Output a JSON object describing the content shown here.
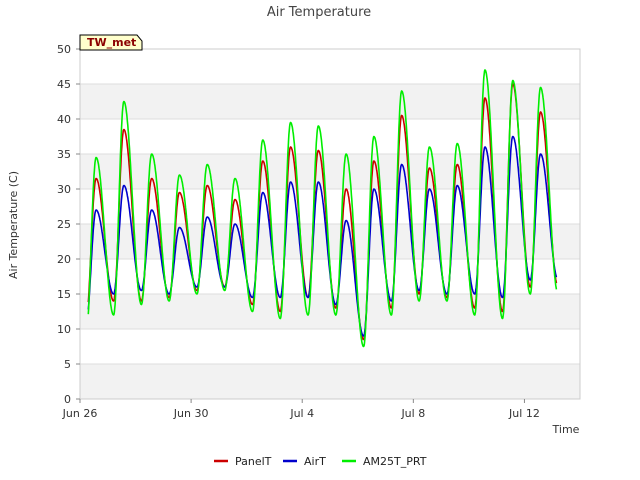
{
  "chart_data": {
    "type": "line",
    "title": "Air Temperature",
    "xlabel": "Time",
    "ylabel": "Air Temperature (C)",
    "station_badge": "TW_met",
    "x_tick_labels": [
      "Jun 26",
      "Jun 30",
      "Jul 4",
      "Jul 8",
      "Jul 12"
    ],
    "x_tick_days": [
      0,
      4,
      8,
      12,
      16
    ],
    "x_range_days": [
      0,
      18
    ],
    "ylim": [
      0,
      50
    ],
    "y_ticks": [
      0,
      5,
      10,
      15,
      20,
      25,
      30,
      35,
      40,
      45,
      50
    ],
    "grid": "horizontal bands",
    "legend_position": "bottom",
    "series": [
      {
        "name": "PanelT",
        "color": "#cc0000",
        "daily_min": [
          11,
          14,
          14,
          14.5,
          15.5,
          16,
          13.5,
          12.5,
          14.5,
          13,
          8.5,
          13,
          15,
          14.5,
          13,
          12.5,
          16,
          16
        ],
        "daily_max": [
          31.5,
          38.5,
          31.5,
          29.5,
          30.5,
          28.5,
          34,
          36,
          35.5,
          30,
          34,
          40.5,
          33,
          33.5,
          43,
          45,
          41
        ]
      },
      {
        "name": "AirT",
        "color": "#0000cc",
        "daily_min": [
          10.5,
          15,
          15.5,
          15,
          16,
          16,
          14.5,
          14.5,
          14.5,
          13.5,
          9,
          14,
          15.5,
          15,
          15,
          14.5,
          17,
          17
        ],
        "daily_max": [
          27,
          30.5,
          27,
          24.5,
          26,
          25,
          29.5,
          31,
          31,
          25.5,
          30,
          33.5,
          30,
          30.5,
          36,
          37.5,
          35
        ]
      },
      {
        "name": "AM25T_PRT",
        "color": "#00ee00",
        "daily_min": [
          8.5,
          12,
          13.5,
          14,
          15,
          15.5,
          12.5,
          11.5,
          12,
          12,
          7.5,
          12,
          14,
          14,
          12,
          11.5,
          15,
          15
        ],
        "daily_max": [
          34.5,
          42.5,
          35,
          32,
          33.5,
          31.5,
          37,
          39.5,
          39,
          35,
          37.5,
          44,
          36,
          36.5,
          47,
          45.5,
          44.5
        ]
      }
    ]
  }
}
